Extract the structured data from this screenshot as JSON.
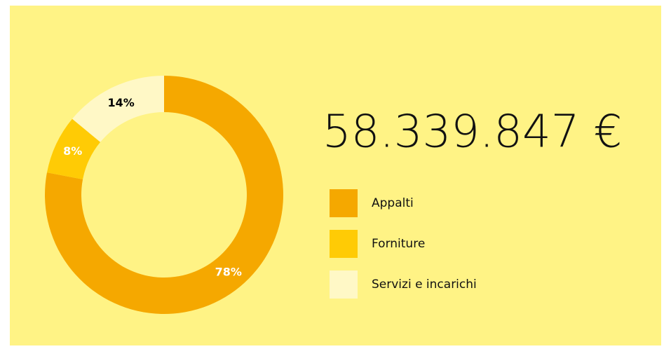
{
  "chart_data": {
    "type": "pie",
    "donut": true,
    "total": "58.339.847 €",
    "categories": [
      "Appalti",
      "Forniture",
      "Servizi e incarichi"
    ],
    "values": [
      78,
      8,
      14
    ],
    "value_labels": [
      "78%",
      "8%",
      "14%"
    ],
    "colors": [
      "#f5a800",
      "#ffcb05",
      "#fff8c6"
    ],
    "label_colors": [
      "#ffffff",
      "#ffffff",
      "#000000"
    ]
  }
}
